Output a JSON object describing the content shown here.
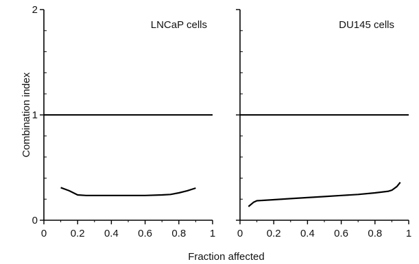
{
  "figure": {
    "xlabel": "Fraction affected",
    "ylabel": "Combination index"
  },
  "chart_data": [
    {
      "type": "line",
      "title": "LNCaP cells",
      "xlabel": "Fraction affected",
      "ylabel": "Combination index",
      "xlim": [
        0,
        1
      ],
      "ylim": [
        0,
        2
      ],
      "xticks": [
        "0",
        "0.2",
        "0.4",
        "0.6",
        "0.8",
        "1"
      ],
      "yticks": [
        "0",
        "1",
        "2"
      ],
      "reference_line_y": 1,
      "grid": false,
      "series": [
        {
          "x": [
            0.1,
            0.15,
            0.2,
            0.25,
            0.3,
            0.4,
            0.5,
            0.6,
            0.7,
            0.75,
            0.8,
            0.85,
            0.9
          ],
          "y": [
            0.31,
            0.28,
            0.24,
            0.235,
            0.235,
            0.235,
            0.235,
            0.235,
            0.24,
            0.245,
            0.26,
            0.28,
            0.305
          ]
        }
      ]
    },
    {
      "type": "line",
      "title": "DU145 cells",
      "xlabel": "Fraction affected",
      "ylabel": "Combination index",
      "xlim": [
        0,
        1
      ],
      "ylim": [
        0,
        2
      ],
      "xticks": [
        "0",
        "0.2",
        "0.4",
        "0.6",
        "0.8",
        "1"
      ],
      "yticks": [
        "0",
        "1",
        "2"
      ],
      "reference_line_y": 1,
      "grid": false,
      "series": [
        {
          "x": [
            0.05,
            0.08,
            0.1,
            0.2,
            0.3,
            0.4,
            0.5,
            0.6,
            0.7,
            0.8,
            0.88,
            0.9,
            0.93,
            0.95
          ],
          "y": [
            0.13,
            0.17,
            0.185,
            0.195,
            0.205,
            0.215,
            0.225,
            0.235,
            0.245,
            0.26,
            0.275,
            0.285,
            0.32,
            0.36
          ]
        }
      ]
    }
  ]
}
